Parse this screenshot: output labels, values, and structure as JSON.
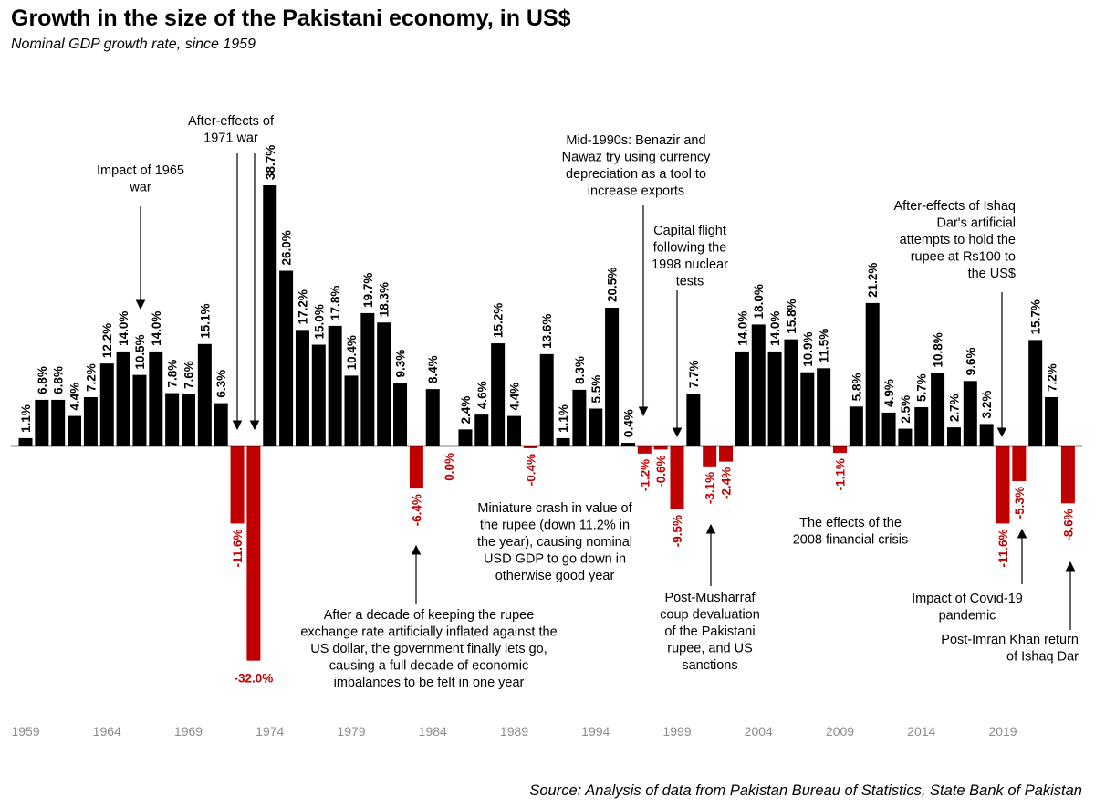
{
  "header": {
    "title": "Growth in the size of the Pakistani economy, in US$",
    "subtitle": "Nominal GDP growth rate, since 1959"
  },
  "footer": {
    "source": "Source: Analysis of data from Pakistan Bureau of Statistics, State Bank of Pakistan"
  },
  "colors": {
    "positive": "#000000",
    "negative": "#c00000",
    "tick": "#8c8c8c"
  },
  "chart_data": {
    "type": "bar",
    "title": "Growth in the size of the Pakistani economy, in US$",
    "subtitle": "Nominal GDP growth rate, since 1959",
    "xlabel": "",
    "ylabel": "",
    "ylim": [
      -32,
      38.7
    ],
    "grid": false,
    "legend": "none",
    "categories": [
      1959,
      1960,
      1961,
      1962,
      1963,
      1964,
      1965,
      1966,
      1967,
      1968,
      1969,
      1970,
      1971,
      1972,
      1973,
      1974,
      1975,
      1976,
      1977,
      1978,
      1979,
      1980,
      1981,
      1982,
      1983,
      1984,
      1985,
      1986,
      1987,
      1988,
      1989,
      1990,
      1991,
      1992,
      1993,
      1994,
      1995,
      1996,
      1997,
      1998,
      1999,
      2000,
      2001,
      2002,
      2003,
      2004,
      2005,
      2006,
      2007,
      2008,
      2009,
      2010,
      2011,
      2012,
      2013,
      2014,
      2015,
      2016,
      2017,
      2018,
      2019,
      2020,
      2021,
      2022,
      2023
    ],
    "values": [
      1.1,
      6.8,
      6.8,
      4.4,
      7.2,
      12.2,
      14.0,
      10.5,
      14.0,
      7.8,
      7.6,
      15.1,
      6.3,
      -11.6,
      -32.0,
      38.7,
      26.0,
      17.2,
      15.0,
      17.8,
      10.4,
      19.7,
      18.3,
      9.3,
      -6.4,
      8.4,
      0.0,
      2.4,
      4.6,
      15.2,
      4.4,
      -0.4,
      13.6,
      1.1,
      8.3,
      5.5,
      20.5,
      0.4,
      -1.2,
      -0.6,
      -9.5,
      7.7,
      -3.1,
      -2.4,
      14.0,
      18.0,
      14.0,
      15.8,
      10.9,
      11.5,
      -1.1,
      5.8,
      21.2,
      4.9,
      2.5,
      5.7,
      10.8,
      2.7,
      9.6,
      3.2,
      -11.6,
      -5.3,
      15.7,
      7.2,
      -8.6
    ],
    "value_labels": [
      "1.1%",
      "6.8%",
      "6.8%",
      "4.4%",
      "7.2%",
      "12.2%",
      "14.0%",
      "10.5%",
      "14.0%",
      "7.8%",
      "7.6%",
      "15.1%",
      "6.3%",
      "-11.6%",
      "-32.0%",
      "38.7%",
      "26.0%",
      "17.2%",
      "15.0%",
      "17.8%",
      "10.4%",
      "19.7%",
      "18.3%",
      "9.3%",
      "-6.4%",
      "8.4%",
      "0.0%",
      "2.4%",
      "4.6%",
      "15.2%",
      "4.4%",
      "-0.4%",
      "13.6%",
      "1.1%",
      "8.3%",
      "5.5%",
      "20.5%",
      "0.4%",
      "-1.2%",
      "-0.6%",
      "-9.5%",
      "7.7%",
      "-3.1%",
      "-2.4%",
      "14.0%",
      "18.0%",
      "14.0%",
      "15.8%",
      "10.9%",
      "11.5%",
      "-1.1%",
      "5.8%",
      "21.2%",
      "4.9%",
      "2.5%",
      "5.7%",
      "10.8%",
      "2.7%",
      "9.6%",
      "3.2%",
      "-11.6%",
      "-5.3%",
      "15.7%",
      "7.2%",
      "-8.6%"
    ],
    "tick_labels": [
      "1959",
      "1964",
      "1969",
      "1974",
      "1979",
      "1984",
      "1989",
      "1994",
      "1999",
      "2004",
      "2009",
      "2014",
      "2019"
    ],
    "annotations": [
      {
        "id": "war-1965",
        "lines": [
          "Impact of 1965",
          "war"
        ],
        "year": 1966
      },
      {
        "id": "war-1971",
        "lines": [
          "After-effects of",
          "1971 war"
        ],
        "year": 1972
      },
      {
        "id": "decade-1982",
        "lines": [
          "After a decade of keeping the rupee",
          "exchange rate artificially inflated against the",
          "US dollar, the government finally lets go,",
          "causing a full decade of economic",
          "imbalances to be felt in one year"
        ],
        "year": 1983
      },
      {
        "id": "miniature-1990",
        "lines": [
          "Miniature crash in value of",
          "the rupee (down 11.2% in",
          "the year), causing nominal",
          "USD GDP to go down in",
          "otherwise good year"
        ],
        "year": 1990
      },
      {
        "id": "mid-1990s",
        "lines": [
          "Mid-1990s: Benazir and",
          "Nawaz try using currency",
          "depreciation as a tool to",
          "increase exports"
        ],
        "year": 1997
      },
      {
        "id": "capital-flight",
        "lines": [
          "Capital flight",
          "following the",
          "1998 nuclear",
          "tests"
        ],
        "year": 1999
      },
      {
        "id": "musharraf",
        "lines": [
          "Post-Musharraf",
          "coup devaluation",
          "of the Pakistani",
          "rupee, and US",
          "sanctions"
        ],
        "year": 2001
      },
      {
        "id": "crisis-2008",
        "lines": [
          "The effects of the",
          "2008 financial crisis"
        ],
        "year": 2009
      },
      {
        "id": "ishaq-dar",
        "lines": [
          "After-effects of Ishaq",
          "Dar's artificial",
          "attempts to hold the",
          "rupee at Rs100 to",
          "the US$"
        ],
        "year": 2019
      },
      {
        "id": "covid",
        "lines": [
          "Impact of Covid-19",
          "pandemic"
        ],
        "year": 2020
      },
      {
        "id": "imran-khan",
        "lines": [
          "Post-Imran Khan return",
          "of Ishaq Dar"
        ],
        "year": 2023
      }
    ]
  }
}
